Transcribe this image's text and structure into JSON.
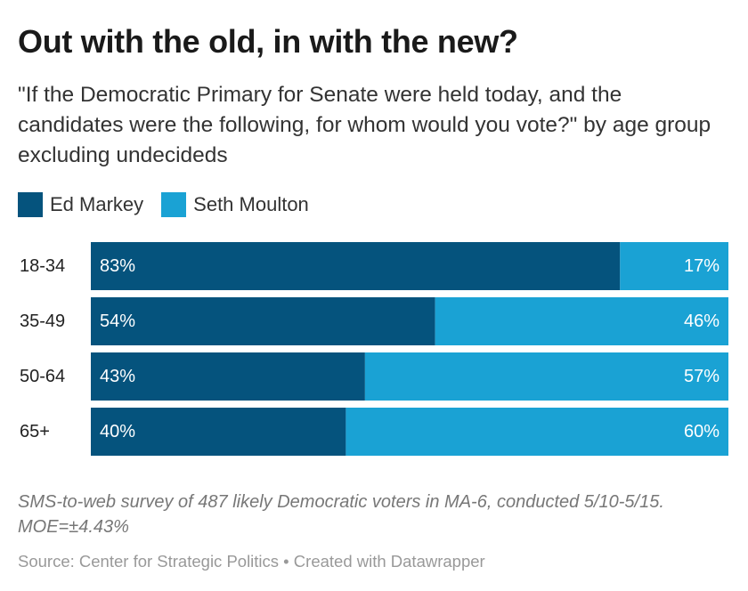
{
  "title": "Out with the old, in with the new?",
  "subtitle": "\"If the Democratic Primary for Senate were held today, and the candidates were the following, for whom would you vote?\" by age group excluding undecideds",
  "colors": {
    "ed_markey": "#05537d",
    "seth_moulton": "#1aa2d4",
    "bar_text": "#ffffff",
    "row_label": "#222222"
  },
  "chart_data": {
    "type": "bar",
    "orientation": "horizontal",
    "stacked": true,
    "categories": [
      "18-34",
      "35-49",
      "50-64",
      "65+"
    ],
    "series": [
      {
        "name": "Ed Markey",
        "values": [
          83,
          54,
          43,
          40
        ],
        "labels": [
          "83%",
          "54%",
          "43%",
          "40%"
        ]
      },
      {
        "name": "Seth Moulton",
        "values": [
          17,
          46,
          57,
          60
        ],
        "labels": [
          "17%",
          "46%",
          "57%",
          "60%"
        ]
      }
    ],
    "xlim": [
      0,
      100
    ],
    "unit": "%",
    "legend": "top-left",
    "grid": false
  },
  "footnote": "SMS-to-web survey of 487 likely Democratic voters in MA-6, conducted 5/10-5/15. MOE=±4.43%",
  "source": "Source: Center for Strategic Politics • Created with Datawrapper"
}
